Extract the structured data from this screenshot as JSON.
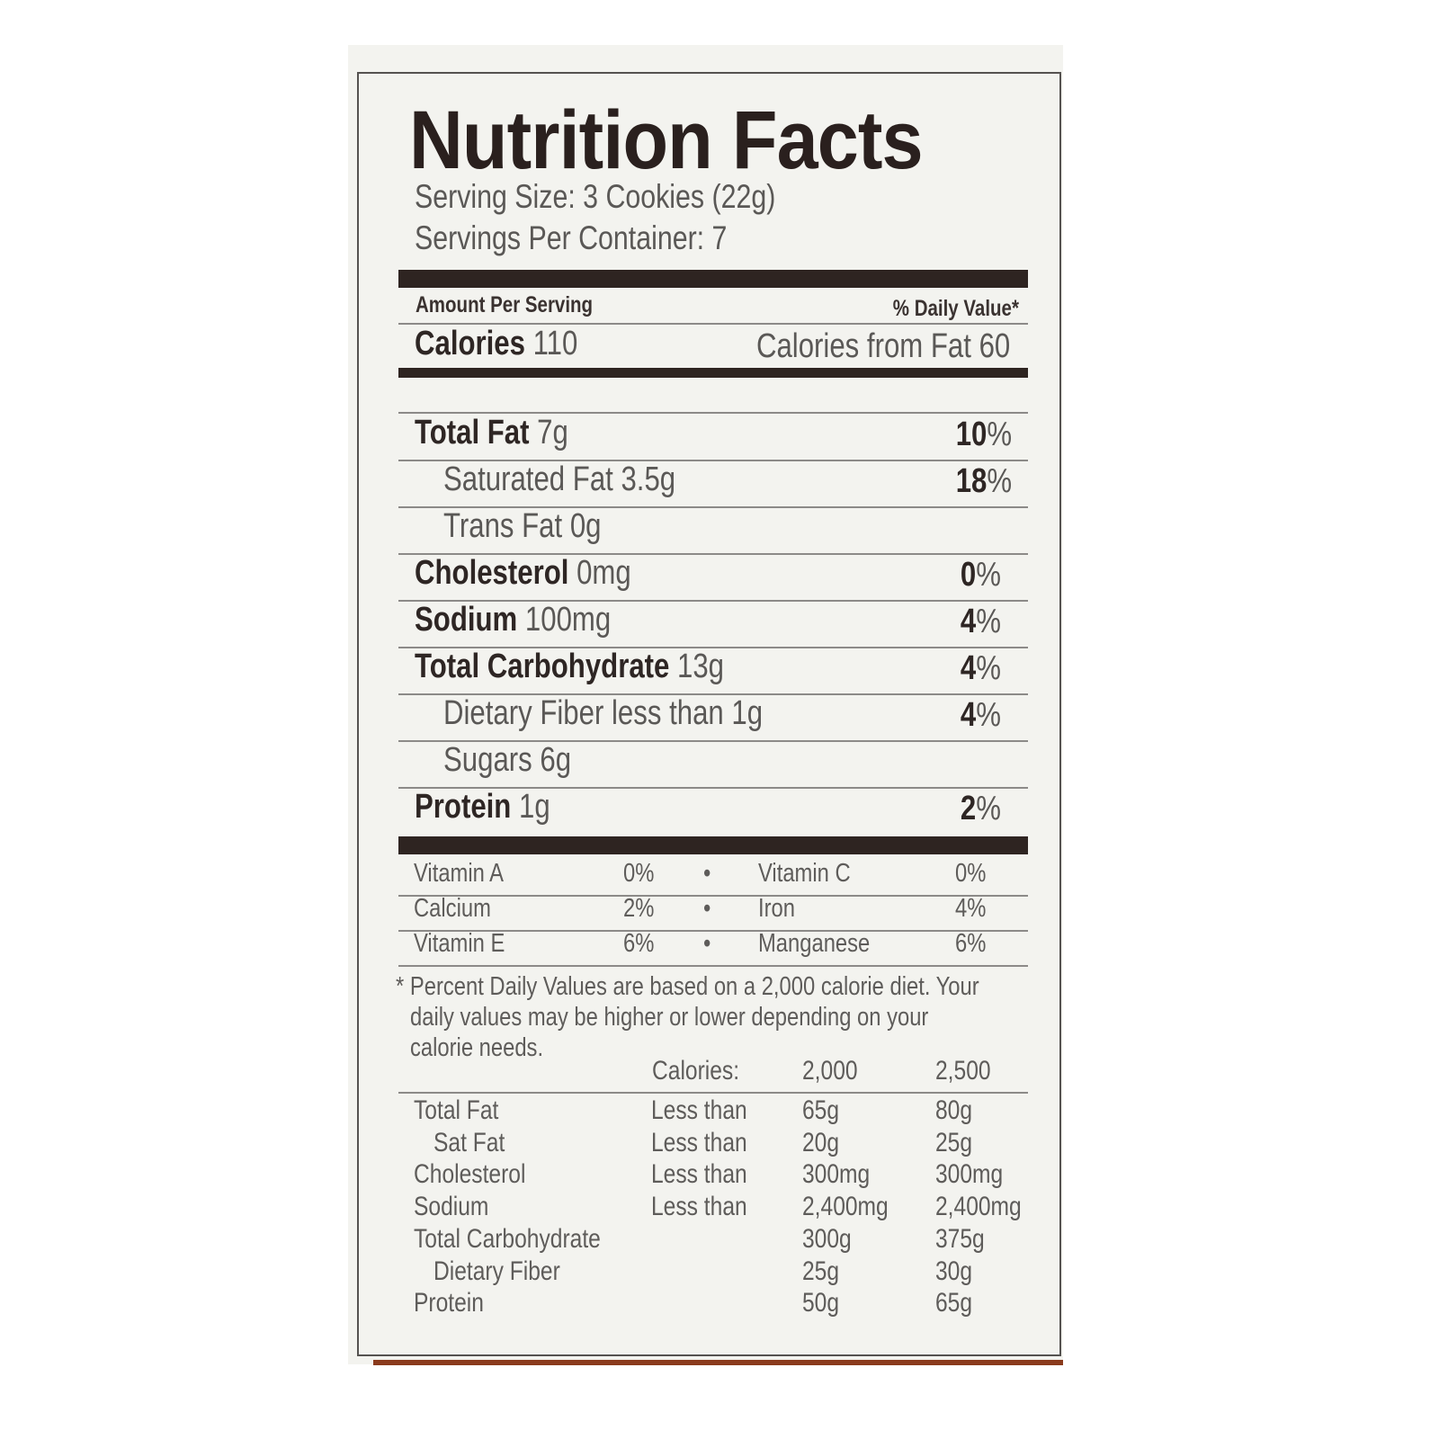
{
  "label": {
    "title": "Nutrition Facts",
    "serving_size": "Serving Size: 3 Cookies (22g)",
    "servings_per_container": "Servings Per Container: 7",
    "amount_per_serving": "Amount Per Serving",
    "daily_value_header": "% Daily Value*",
    "calories_label": "Calories",
    "calories_value": "110",
    "calories_from_fat": "Calories from Fat 60",
    "nutrients": [
      {
        "name": "Total Fat",
        "amount": "7g",
        "bold": true,
        "indent": false,
        "pct_num": "10",
        "pct_sign": "%"
      },
      {
        "name": "Saturated Fat",
        "amount": "3.5g",
        "bold": false,
        "indent": true,
        "pct_num": "18",
        "pct_sign": "%"
      },
      {
        "name": "Trans Fat",
        "amount": "0g",
        "bold": false,
        "indent": true,
        "pct_num": "",
        "pct_sign": ""
      },
      {
        "name": "Cholesterol",
        "amount": "0mg",
        "bold": true,
        "indent": false,
        "pct_num": "0",
        "pct_sign": "%"
      },
      {
        "name": "Sodium",
        "amount": "100mg",
        "bold": true,
        "indent": false,
        "pct_num": "4",
        "pct_sign": "%"
      },
      {
        "name": "Total Carbohydrate",
        "amount": "13g",
        "bold": true,
        "indent": false,
        "pct_num": "4",
        "pct_sign": "%"
      },
      {
        "name": "Dietary Fiber",
        "amount": "less than 1g",
        "bold": false,
        "indent": true,
        "pct_num": "4",
        "pct_sign": "%"
      },
      {
        "name": "Sugars",
        "amount": "6g",
        "bold": false,
        "indent": true,
        "pct_num": "",
        "pct_sign": ""
      },
      {
        "name": "Protein",
        "amount": "1g",
        "bold": true,
        "indent": false,
        "pct_num": "2",
        "pct_sign": "%"
      }
    ],
    "vitamins": [
      {
        "name1": "Vitamin A",
        "pct1": "0%",
        "bullet": "•",
        "name2": "Vitamin C",
        "pct2": "0%"
      },
      {
        "name1": "Calcium",
        "pct1": "2%",
        "bullet": "•",
        "name2": "Iron",
        "pct2": "4%"
      },
      {
        "name1": "Vitamin E",
        "pct1": "6%",
        "bullet": "•",
        "name2": "Manganese",
        "pct2": "6%"
      }
    ],
    "footnote_asterisk": "*",
    "footnote_lines": [
      "Percent Daily Values are based on a 2,000 calorie diet. Your",
      "daily values may be higher  or lower depending on your",
      "calorie needs."
    ],
    "dv_table": {
      "header": [
        "Calories:",
        "2,000",
        "2,500"
      ],
      "rows": [
        {
          "name": "Total Fat",
          "indent": false,
          "qual": "Less than",
          "v1": "65g",
          "v2": "80g"
        },
        {
          "name": "Sat Fat",
          "indent": true,
          "qual": "Less than",
          "v1": "20g",
          "v2": "25g"
        },
        {
          "name": "Cholesterol",
          "indent": false,
          "qual": "Less than",
          "v1": "300mg",
          "v2": "300mg"
        },
        {
          "name": "Sodium",
          "indent": false,
          "qual": "Less than",
          "v1": "2,400mg",
          "v2": "2,400mg"
        },
        {
          "name": "Total Carbohydrate",
          "indent": false,
          "qual": "",
          "v1": "300g",
          "v2": "375g"
        },
        {
          "name": "Dietary Fiber",
          "indent": true,
          "qual": "",
          "v1": "25g",
          "v2": "30g"
        },
        {
          "name": "Protein",
          "indent": false,
          "qual": "",
          "v1": "50g",
          "v2": "65g"
        }
      ]
    }
  },
  "colors": {
    "ink": "#2e2421",
    "gray_text": "#5a5856",
    "paper": "#f3f3ef",
    "package_brown": "#8a3a1c"
  }
}
